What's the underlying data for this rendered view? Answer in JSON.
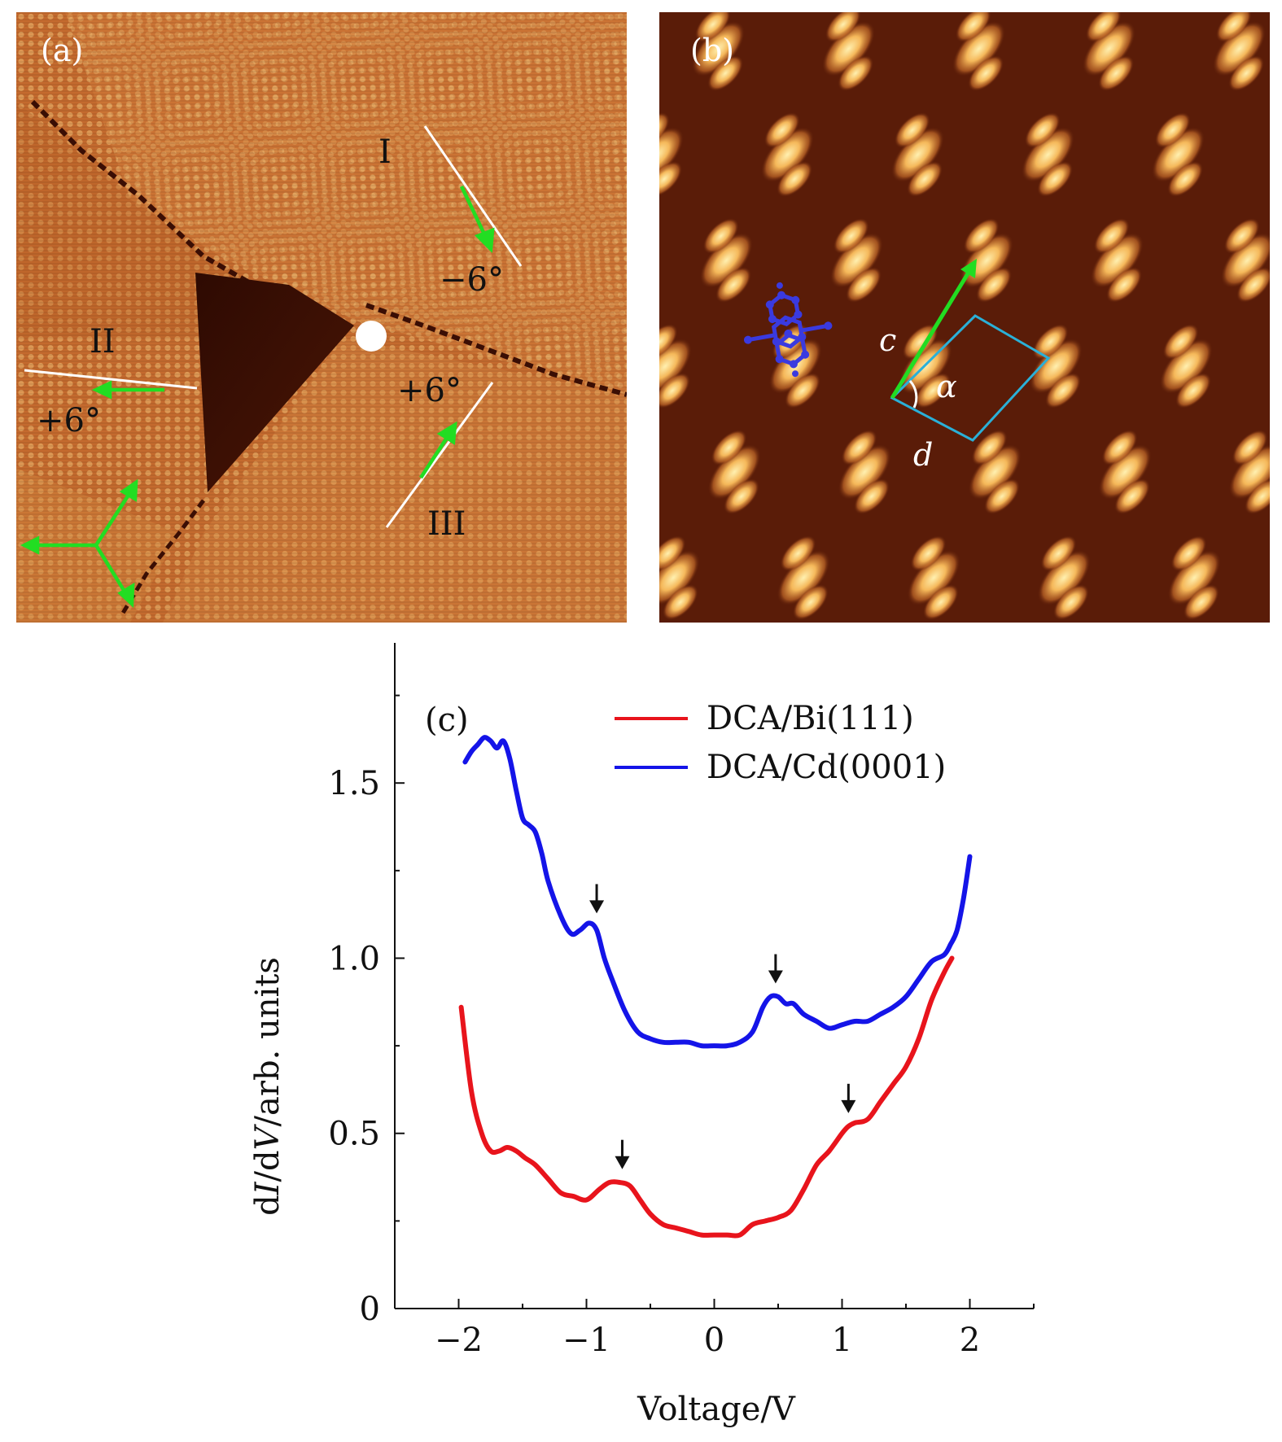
{
  "panel_a": {
    "label": "(a)",
    "domain_labels": {
      "I": "I",
      "II": "II",
      "III": "III"
    },
    "angles": {
      "I": "−6°",
      "II": "+6°",
      "III": "+6°"
    }
  },
  "panel_b": {
    "label": "(b)",
    "vector_c": "c",
    "vector_d": "d",
    "angle": "α"
  },
  "chart_data": {
    "type": "line",
    "panel_label": "(c)",
    "xlabel": "Voltage/V",
    "ylabel_parts": [
      "d",
      "I",
      "/d",
      "V",
      "/arb. units"
    ],
    "xlim": [
      -2.5,
      2.5
    ],
    "ylim": [
      0,
      1.9
    ],
    "xticks": [
      -2,
      -1,
      0,
      1,
      2
    ],
    "xtick_labels": [
      "−2",
      "−1",
      "0",
      "1",
      "2"
    ],
    "yticks": [
      0,
      0.5,
      1.0,
      1.5
    ],
    "ytick_labels": [
      "0",
      "0.5",
      "1.0",
      "1.5"
    ],
    "legend_position": "top-right",
    "series": [
      {
        "name": "DCA/Bi(111)",
        "color": "#e8141c",
        "x": [
          -1.98,
          -1.9,
          -1.82,
          -1.75,
          -1.68,
          -1.62,
          -1.55,
          -1.48,
          -1.4,
          -1.3,
          -1.2,
          -1.1,
          -1.0,
          -0.9,
          -0.82,
          -0.74,
          -0.66,
          -0.58,
          -0.5,
          -0.4,
          -0.3,
          -0.2,
          -0.1,
          0.0,
          0.1,
          0.2,
          0.3,
          0.4,
          0.5,
          0.6,
          0.7,
          0.8,
          0.9,
          1.0,
          1.05,
          1.1,
          1.2,
          1.3,
          1.4,
          1.5,
          1.6,
          1.7,
          1.8,
          1.86
        ],
        "y": [
          0.86,
          0.62,
          0.5,
          0.45,
          0.45,
          0.46,
          0.45,
          0.43,
          0.41,
          0.37,
          0.33,
          0.32,
          0.31,
          0.34,
          0.36,
          0.36,
          0.35,
          0.31,
          0.27,
          0.24,
          0.23,
          0.22,
          0.21,
          0.21,
          0.21,
          0.21,
          0.24,
          0.25,
          0.26,
          0.28,
          0.34,
          0.41,
          0.45,
          0.5,
          0.52,
          0.53,
          0.54,
          0.59,
          0.64,
          0.69,
          0.77,
          0.88,
          0.96,
          1.0
        ]
      },
      {
        "name": "DCA/Cd(0001)",
        "color": "#1414e8",
        "x": [
          -1.95,
          -1.9,
          -1.85,
          -1.8,
          -1.75,
          -1.7,
          -1.65,
          -1.6,
          -1.55,
          -1.5,
          -1.45,
          -1.4,
          -1.35,
          -1.3,
          -1.2,
          -1.12,
          -1.05,
          -0.98,
          -0.92,
          -0.86,
          -0.8,
          -0.7,
          -0.6,
          -0.5,
          -0.4,
          -0.3,
          -0.2,
          -0.1,
          0.0,
          0.1,
          0.2,
          0.3,
          0.38,
          0.44,
          0.5,
          0.56,
          0.62,
          0.7,
          0.8,
          0.9,
          1.0,
          1.1,
          1.2,
          1.3,
          1.4,
          1.5,
          1.6,
          1.7,
          1.8,
          1.85,
          1.9,
          1.95,
          2.0
        ],
        "y": [
          1.56,
          1.59,
          1.61,
          1.63,
          1.62,
          1.6,
          1.62,
          1.57,
          1.48,
          1.4,
          1.38,
          1.36,
          1.3,
          1.22,
          1.12,
          1.07,
          1.08,
          1.1,
          1.08,
          1.0,
          0.94,
          0.85,
          0.79,
          0.77,
          0.76,
          0.76,
          0.76,
          0.75,
          0.75,
          0.75,
          0.76,
          0.79,
          0.86,
          0.89,
          0.89,
          0.87,
          0.87,
          0.84,
          0.82,
          0.8,
          0.81,
          0.82,
          0.82,
          0.84,
          0.86,
          0.89,
          0.94,
          0.99,
          1.01,
          1.04,
          1.08,
          1.17,
          1.29
        ]
      }
    ],
    "arrows": [
      {
        "series": "DCA/Cd(0001)",
        "x": -0.92,
        "y": 1.1
      },
      {
        "series": "DCA/Cd(0001)",
        "x": 0.48,
        "y": 0.9
      },
      {
        "series": "DCA/Bi(111)",
        "x": -0.72,
        "y": 0.37
      },
      {
        "series": "DCA/Bi(111)",
        "x": 1.05,
        "y": 0.53
      }
    ]
  },
  "colors": {
    "stm_a_base": "#c0642a",
    "stm_a_dark": "#3a0e04",
    "stm_b_bg": "#5a1c08",
    "stm_b_bright": "#f6c060",
    "arrow_green": "#22dd22",
    "cell_cyan": "#2ab0d8",
    "molecule_blue": "#3a3adf"
  }
}
